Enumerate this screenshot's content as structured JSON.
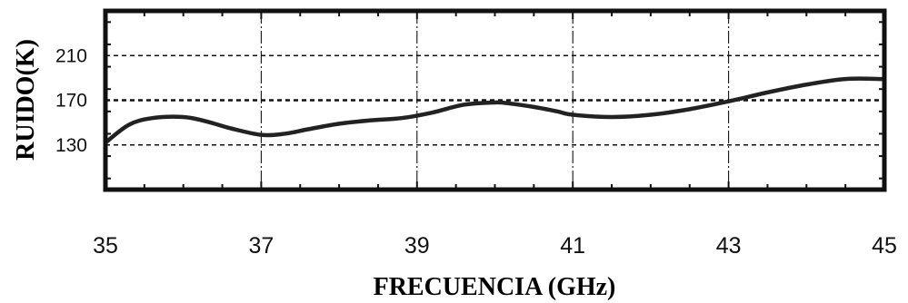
{
  "chart_data": {
    "type": "line",
    "title": "",
    "xlabel": "FRECUENCIA (GHz)",
    "ylabel": "RUIDO(K)",
    "xlim": [
      35,
      45
    ],
    "ylim": [
      90,
      250
    ],
    "x_ticks": [
      35,
      37,
      39,
      41,
      43,
      45
    ],
    "x_tick_labels": [
      "35",
      "37",
      "39",
      "41",
      "43",
      "45"
    ],
    "y_ticks": [
      130,
      170,
      210
    ],
    "y_tick_labels": [
      "130",
      "170",
      "210"
    ],
    "grid": true,
    "legend": "none",
    "series": [
      {
        "x": [
          35.0,
          35.3,
          35.6,
          36.0,
          36.3,
          36.6,
          37.0,
          37.3,
          37.6,
          38.0,
          38.4,
          38.8,
          39.2,
          39.6,
          40.0,
          40.2,
          40.5,
          40.8,
          41.0,
          41.5,
          42.0,
          42.5,
          43.0,
          43.5,
          44.0,
          44.5,
          45.0
        ],
        "values": [
          132,
          148,
          154,
          155,
          151,
          145,
          139,
          140,
          144,
          149,
          152,
          154,
          159,
          166,
          168,
          167,
          164,
          160,
          157,
          155,
          157,
          162,
          169,
          177,
          184,
          189,
          189
        ]
      }
    ],
    "colors": {
      "line": "#222222",
      "frame": "#111111",
      "grid": "#111111"
    }
  }
}
